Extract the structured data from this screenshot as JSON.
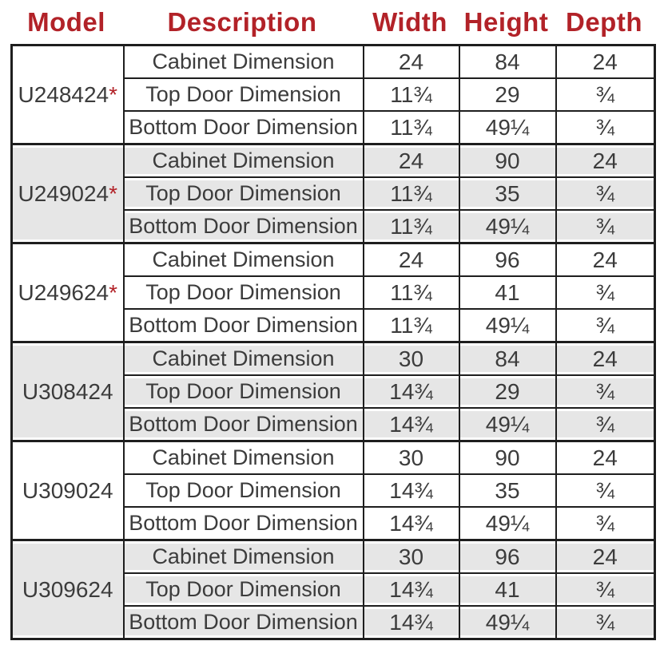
{
  "header": {
    "columns": [
      "Model",
      "Description",
      "Width",
      "Height",
      "Depth"
    ]
  },
  "colors": {
    "accent_red": "#b22228",
    "stripe_gray": "#e6e6e6",
    "border_black": "#1e1e1e",
    "text_gray": "#3c3c3c"
  },
  "table": {
    "groups": [
      {
        "model": "U248424",
        "asterisk": "*",
        "shaded": false,
        "rows": [
          {
            "description": "Cabinet Dimension",
            "width": "24",
            "height": "84",
            "depth": "24"
          },
          {
            "description": "Top Door Dimension",
            "width": "11¾",
            "height": "29",
            "depth": "¾"
          },
          {
            "description": "Bottom Door Dimension",
            "width": "11¾",
            "height": "49¼",
            "depth": "¾"
          }
        ]
      },
      {
        "model": "U249024",
        "asterisk": "*",
        "shaded": true,
        "rows": [
          {
            "description": "Cabinet Dimension",
            "width": "24",
            "height": "90",
            "depth": "24"
          },
          {
            "description": "Top Door Dimension",
            "width": "11¾",
            "height": "35",
            "depth": "¾"
          },
          {
            "description": "Bottom Door Dimension",
            "width": "11¾",
            "height": "49¼",
            "depth": "¾"
          }
        ]
      },
      {
        "model": "U249624",
        "asterisk": "*",
        "shaded": false,
        "rows": [
          {
            "description": "Cabinet Dimension",
            "width": "24",
            "height": "96",
            "depth": "24"
          },
          {
            "description": "Top Door Dimension",
            "width": "11¾",
            "height": "41",
            "depth": "¾"
          },
          {
            "description": "Bottom Door Dimension",
            "width": "11¾",
            "height": "49¼",
            "depth": "¾"
          }
        ]
      },
      {
        "model": "U308424",
        "asterisk": "",
        "shaded": true,
        "rows": [
          {
            "description": "Cabinet Dimension",
            "width": "30",
            "height": "84",
            "depth": "24"
          },
          {
            "description": "Top Door Dimension",
            "width": "14¾",
            "height": "29",
            "depth": "¾"
          },
          {
            "description": "Bottom Door Dimension",
            "width": "14¾",
            "height": "49¼",
            "depth": "¾"
          }
        ]
      },
      {
        "model": "U309024",
        "asterisk": "",
        "shaded": false,
        "rows": [
          {
            "description": "Cabinet Dimension",
            "width": "30",
            "height": "90",
            "depth": "24"
          },
          {
            "description": "Top Door Dimension",
            "width": "14¾",
            "height": "35",
            "depth": "¾"
          },
          {
            "description": "Bottom Door Dimension",
            "width": "14¾",
            "height": "49¼",
            "depth": "¾"
          }
        ]
      },
      {
        "model": "U309624",
        "asterisk": "",
        "shaded": true,
        "rows": [
          {
            "description": "Cabinet Dimension",
            "width": "30",
            "height": "96",
            "depth": "24"
          },
          {
            "description": "Top Door Dimension",
            "width": "14¾",
            "height": "41",
            "depth": "¾"
          },
          {
            "description": "Bottom Door Dimension",
            "width": "14¾",
            "height": "49¼",
            "depth": "¾"
          }
        ]
      }
    ]
  }
}
